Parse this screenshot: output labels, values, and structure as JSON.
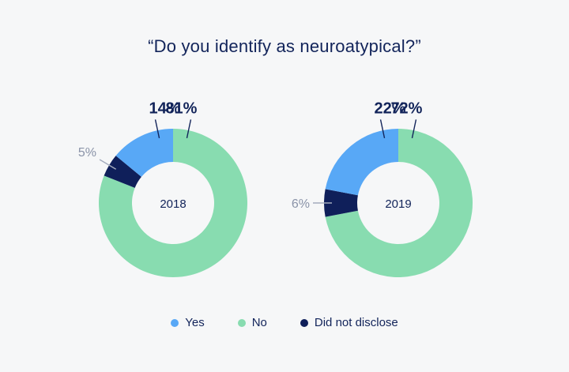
{
  "chart_data": {
    "type": "pie",
    "variant": "donut",
    "title": "“Do you identify as neuroatypical?”",
    "categories": [
      "Yes",
      "No",
      "Did not disclose"
    ],
    "colors": {
      "Yes": "#58a8f6",
      "No": "#88dcb0",
      "Did not disclose": "#0f1f5a"
    },
    "charts": [
      {
        "label": "2018",
        "values": {
          "Yes": 14,
          "No": 81,
          "Did not disclose": 5
        },
        "value_labels": {
          "Yes": "14%",
          "No": "81%",
          "Did not disclose": "5%"
        }
      },
      {
        "label": "2019",
        "values": {
          "Yes": 22,
          "No": 72,
          "Did not disclose": 6
        },
        "value_labels": {
          "Yes": "22%",
          "No": "72%",
          "Did not disclose": "6%"
        }
      }
    ],
    "legend": [
      "Yes",
      "No",
      "Did not disclose"
    ],
    "legend_placement": "bottom-center"
  }
}
